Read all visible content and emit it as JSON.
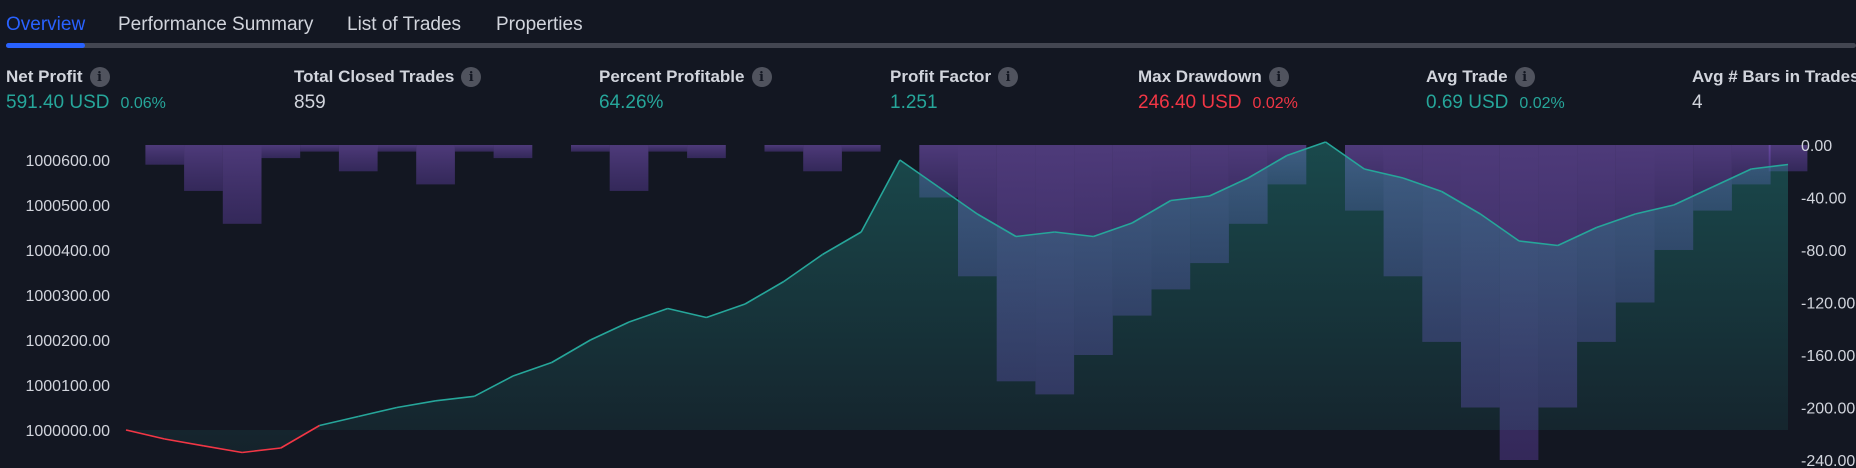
{
  "tabs": [
    {
      "label": "Overview",
      "active": true
    },
    {
      "label": "Performance Summary",
      "active": false
    },
    {
      "label": "List of Trades",
      "active": false
    },
    {
      "label": "Properties",
      "active": false
    }
  ],
  "metrics": [
    {
      "label": "Net Profit",
      "value": "591.40 USD",
      "pct": "0.06%",
      "color": "green",
      "info": true
    },
    {
      "label": "Total Closed Trades",
      "value": "859",
      "pct": "",
      "color": "white",
      "info": true
    },
    {
      "label": "Percent Profitable",
      "value": "64.26%",
      "pct": "",
      "color": "green",
      "info": true
    },
    {
      "label": "Profit Factor",
      "value": "1.251",
      "pct": "",
      "color": "green",
      "info": true
    },
    {
      "label": "Max Drawdown",
      "value": "246.40 USD",
      "pct": "0.02%",
      "color": "red",
      "info": true
    },
    {
      "label": "Avg Trade",
      "value": "0.69 USD",
      "pct": "0.02%",
      "color": "green",
      "info": true
    },
    {
      "label": "Avg # Bars in Trades",
      "value": "4",
      "pct": "",
      "color": "white",
      "info": false
    }
  ],
  "colors": {
    "accent": "#2962ff",
    "profit": "#26a69a",
    "loss": "#f23645",
    "drawdown": "#7e57c2",
    "background": "#131722"
  },
  "chart_data": {
    "type": "area",
    "series": [
      {
        "name": "",
        "axis": "left",
        "x": [
          0,
          20,
          40,
          60,
          80,
          100,
          120,
          140,
          160,
          180,
          200,
          220,
          240,
          260,
          280,
          300,
          320,
          340,
          360,
          380,
          400,
          420,
          440,
          460,
          480,
          500,
          520,
          540,
          560,
          580,
          600,
          620,
          640,
          660,
          680,
          700,
          720,
          740,
          760,
          780,
          800,
          820,
          840,
          859
        ],
        "values": [
          1000000,
          999980,
          999965,
          999950,
          999960,
          1000010,
          1000030,
          1000050,
          1000065,
          1000075,
          1000120,
          1000150,
          1000200,
          1000240,
          1000270,
          1000250,
          1000280,
          1000330,
          1000390,
          1000440,
          1000600,
          1000540,
          1000480,
          1000430,
          1000440,
          1000430,
          1000460,
          1000510,
          1000520,
          1000560,
          1000610,
          1000640,
          1000580,
          1000560,
          1000530,
          1000480,
          1000420,
          1000410,
          1000450,
          1000480,
          1000500,
          1000540,
          1000580,
          1000590
        ]
      },
      {
        "name": "",
        "axis": "right",
        "x": [
          0,
          20,
          40,
          60,
          80,
          100,
          120,
          140,
          160,
          180,
          200,
          220,
          240,
          260,
          280,
          300,
          320,
          340,
          360,
          380,
          400,
          420,
          440,
          460,
          480,
          500,
          520,
          540,
          560,
          580,
          600,
          620,
          640,
          660,
          680,
          700,
          720,
          740,
          760,
          780,
          800,
          820,
          840,
          859
        ],
        "values": [
          0,
          -15,
          -35,
          -60,
          -10,
          -5,
          -20,
          -5,
          -30,
          -5,
          -10,
          0,
          -5,
          -35,
          -5,
          -10,
          0,
          -5,
          -20,
          -5,
          0,
          -40,
          -100,
          -180,
          -190,
          -160,
          -130,
          -110,
          -90,
          -60,
          -30,
          0,
          -50,
          -100,
          -150,
          -200,
          -240,
          -200,
          -150,
          -120,
          -80,
          -50,
          -30,
          -20
        ]
      }
    ],
    "ylim_left": [
      1000000,
      1000650
    ],
    "ylim_right": [
      -240,
      0
    ],
    "yticks_left": [
      "1000600.00",
      "1000500.00",
      "1000400.00",
      "1000300.00",
      "1000200.00",
      "1000100.00",
      "1000000.00"
    ],
    "yticks_right": [
      "0.00",
      "-40.00",
      "-80.00",
      "-120.00",
      "-160.00",
      "-200.00",
      "-240.00"
    ],
    "grid": false
  }
}
